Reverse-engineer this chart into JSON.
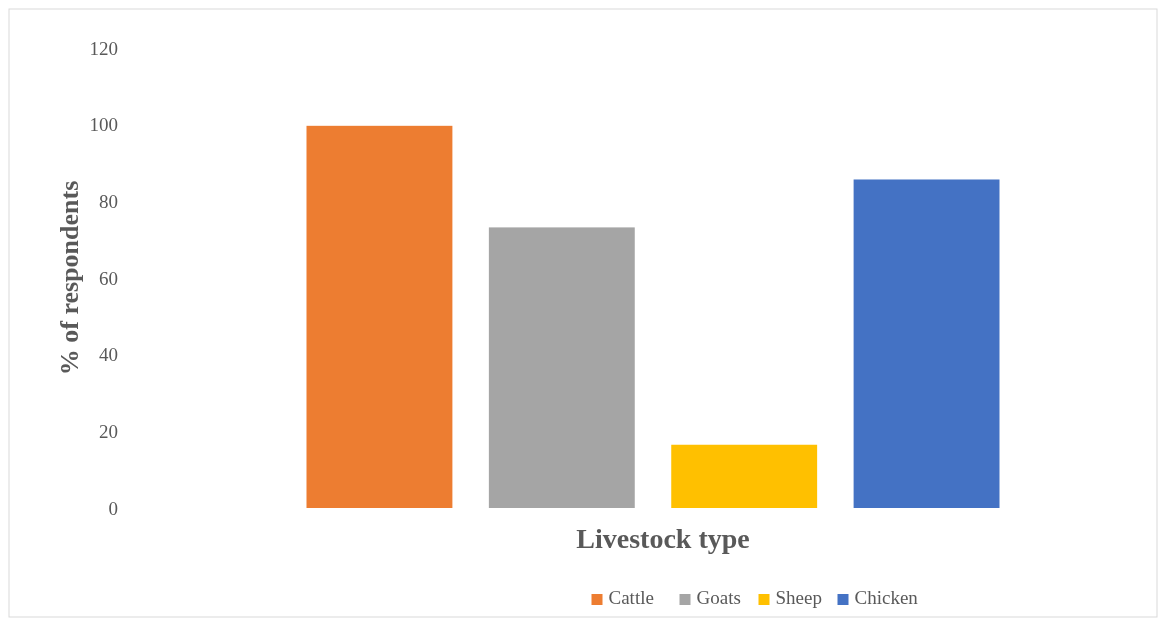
{
  "chart_data": {
    "type": "bar",
    "xlabel": "Livestock type",
    "ylabel": "% of respondents",
    "categories": [
      null
    ],
    "series": [
      {
        "name": "Cattle",
        "color": "#ed7d31",
        "values": [
          99.7
        ]
      },
      {
        "name": "Goats",
        "color": "#a5a5a5",
        "values": [
          73.2
        ]
      },
      {
        "name": "Sheep",
        "color": "#ffc000",
        "values": [
          16.5
        ]
      },
      {
        "name": "Chicken",
        "color": "#4472c4",
        "values": [
          85.7
        ]
      }
    ],
    "ylim": [
      0,
      120
    ],
    "yticks": [
      0,
      20,
      40,
      60,
      80,
      100,
      120
    ],
    "legend": "bottom",
    "grid": false
  }
}
